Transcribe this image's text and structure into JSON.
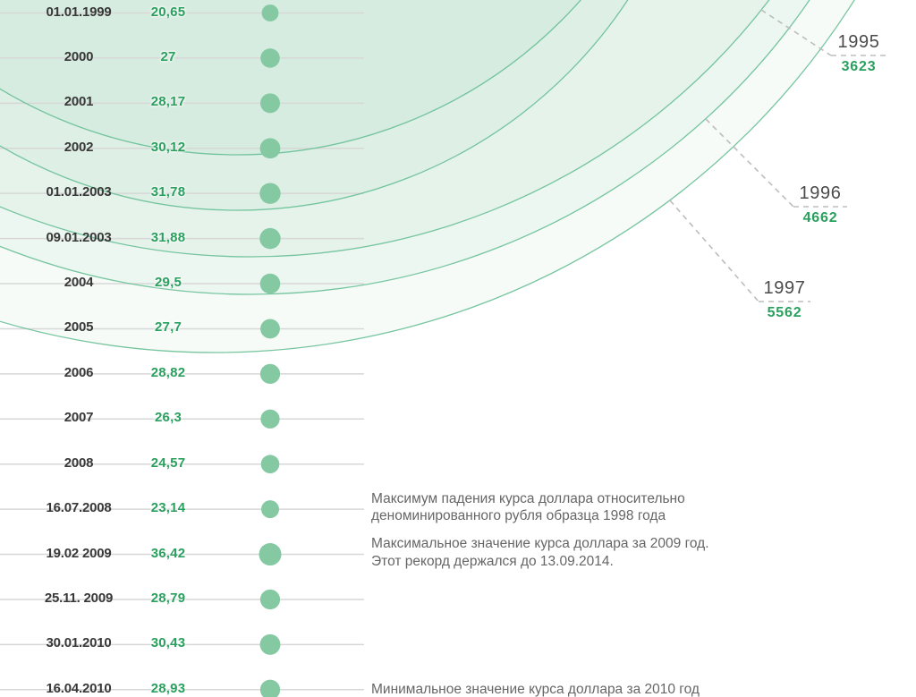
{
  "colors": {
    "accent_green": "#2aa05f",
    "dot_green": "#85c9a2",
    "arc_stroke_green": "#67bf95",
    "arc_fill_green": "#86c8a6",
    "gridline_gray": "#d7d7d7",
    "text_dark": "#383838",
    "note_gray": "#666666",
    "year_gray": "#4a4a4a",
    "leader_gray": "#bdbdbd"
  },
  "chart_data": {
    "type": "scatter",
    "subtype": "bubble-timeline",
    "grid": true,
    "rows": [
      {
        "date": "01.01.1999",
        "value_label": "20,65",
        "value": 20.65
      },
      {
        "date": "2000",
        "value_label": "27",
        "value": 27
      },
      {
        "date": "2001",
        "value_label": "28,17",
        "value": 28.17
      },
      {
        "date": "2002",
        "value_label": "30,12",
        "value": 30.12
      },
      {
        "date": "01.01.2003",
        "value_label": "31,78",
        "value": 31.78
      },
      {
        "date": "09.01.2003",
        "value_label": "31,88",
        "value": 31.88
      },
      {
        "date": "2004",
        "value_label": "29,5",
        "value": 29.5
      },
      {
        "date": "2005",
        "value_label": "27,7",
        "value": 27.7
      },
      {
        "date": "2006",
        "value_label": "28,82",
        "value": 28.82
      },
      {
        "date": "2007",
        "value_label": "26,3",
        "value": 26.3
      },
      {
        "date": "2008",
        "value_label": "24,57",
        "value": 24.57
      },
      {
        "date": "16.07.2008",
        "value_label": "23,14",
        "value": 23.14,
        "note": "Максимум падения курса доллара относительно\nденоминированного рубля образца 1998 года"
      },
      {
        "date": "19.02 2009",
        "value_label": "36,42",
        "value": 36.42,
        "note": "Максимальное значение курса доллара за 2009 год.\nЭтот рекорд держался до 13.09.2014."
      },
      {
        "date": "25.11. 2009",
        "value_label": "28,79",
        "value": 28.79
      },
      {
        "date": "30.01.2010",
        "value_label": "30,43",
        "value": 30.43
      },
      {
        "date": "16.04.2010",
        "value_label": "28,93",
        "value": 28.93,
        "note": "Минимальное значение курса доллара за 2010 год"
      }
    ],
    "pre_denomination_years": [
      {
        "year": "1995",
        "value_label": "3623",
        "value": 3623
      },
      {
        "year": "1996",
        "value_label": "4662",
        "value": 4662
      },
      {
        "year": "1997",
        "value_label": "5562",
        "value": 5562
      }
    ]
  }
}
